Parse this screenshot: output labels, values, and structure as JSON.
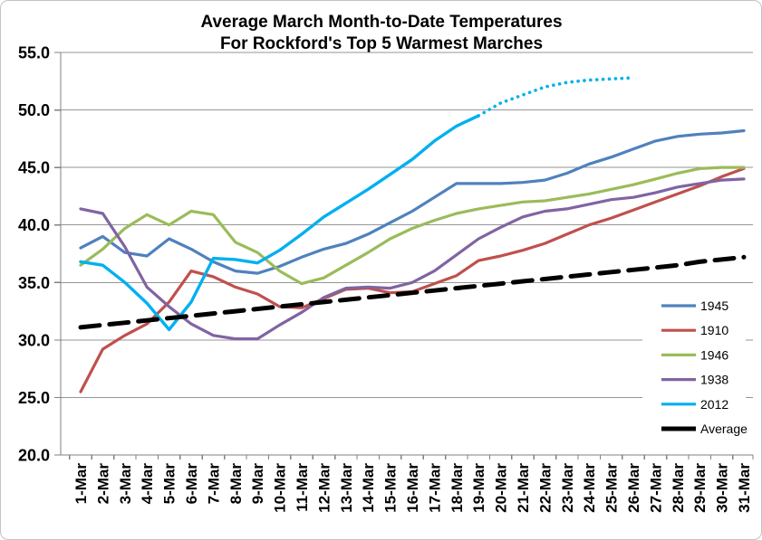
{
  "title": {
    "line1": "Average March Month-to-Date Temperatures",
    "line2": "For Rockford's Top 5 Warmest Marches"
  },
  "colors": {
    "series_1945": "#4F81BD",
    "series_1910": "#C0504D",
    "series_1946": "#9BBB59",
    "series_1938": "#8064A2",
    "series_2012": "#00B0F0",
    "average": "#000000",
    "gridline": "#969696",
    "axis": "#808080"
  },
  "chart_data": {
    "type": "line",
    "title": "Average March Month-to-Date Temperatures For Rockford's Top 5 Warmest Marches",
    "xlabel": "",
    "ylabel": "",
    "ylim": [
      20.0,
      55.0
    ],
    "y_tick_step": 5.0,
    "y_tick_labels": [
      "55.0",
      "50.0",
      "45.0",
      "40.0",
      "35.0",
      "30.0",
      "25.0",
      "20.0"
    ],
    "grid": true,
    "legend_position": "right-inside",
    "categories": [
      "1-Mar",
      "2-Mar",
      "3-Mar",
      "4-Mar",
      "5-Mar",
      "6-Mar",
      "7-Mar",
      "8-Mar",
      "9-Mar",
      "10-Mar",
      "11-Mar",
      "12-Mar",
      "13-Mar",
      "14-Mar",
      "15-Mar",
      "16-Mar",
      "17-Mar",
      "18-Mar",
      "19-Mar",
      "20-Mar",
      "21-Mar",
      "22-Mar",
      "23-Mar",
      "24-Mar",
      "25-Mar",
      "26-Mar",
      "27-Mar",
      "28-Mar",
      "29-Mar",
      "30-Mar",
      "31-Mar"
    ],
    "series": [
      {
        "name": "1945",
        "color": "#4F81BD",
        "width": 3.2,
        "dash": "solid",
        "values": [
          38.0,
          39.0,
          37.6,
          37.3,
          38.8,
          37.9,
          36.8,
          36.0,
          35.8,
          36.4,
          37.2,
          37.9,
          38.4,
          39.2,
          40.2,
          41.2,
          42.4,
          43.6,
          43.6,
          43.6,
          43.7,
          43.9,
          44.5,
          45.3,
          45.9,
          46.6,
          47.3,
          47.7,
          47.9,
          48.0,
          48.2
        ]
      },
      {
        "name": "1910",
        "color": "#C0504D",
        "width": 3.2,
        "dash": "solid",
        "values": [
          25.5,
          29.2,
          30.4,
          31.4,
          33.3,
          36.0,
          35.5,
          34.6,
          34.0,
          32.9,
          32.8,
          33.6,
          34.4,
          34.5,
          34.1,
          34.2,
          34.9,
          35.6,
          36.9,
          37.3,
          37.8,
          38.4,
          39.2,
          40.0,
          40.6,
          41.3,
          42.0,
          42.7,
          43.4,
          44.2,
          44.9
        ]
      },
      {
        "name": "1946",
        "color": "#9BBB59",
        "width": 3.2,
        "dash": "solid",
        "values": [
          36.5,
          37.9,
          39.7,
          40.9,
          40.0,
          41.2,
          40.9,
          38.5,
          37.6,
          36.0,
          34.9,
          35.4,
          36.5,
          37.6,
          38.8,
          39.7,
          40.4,
          41.0,
          41.4,
          41.7,
          42.0,
          42.1,
          42.4,
          42.7,
          43.1,
          43.5,
          44.0,
          44.5,
          44.9,
          45.0,
          45.0
        ]
      },
      {
        "name": "1938",
        "color": "#8064A2",
        "width": 3.2,
        "dash": "solid",
        "values": [
          41.4,
          41.0,
          38.1,
          34.6,
          32.9,
          31.4,
          30.4,
          30.1,
          30.1,
          31.3,
          32.4,
          33.7,
          34.5,
          34.6,
          34.5,
          35.0,
          36.0,
          37.4,
          38.8,
          39.8,
          40.7,
          41.2,
          41.4,
          41.8,
          42.2,
          42.4,
          42.8,
          43.3,
          43.6,
          43.9,
          44.0
        ]
      },
      {
        "name": "2012",
        "color": "#00B0F0",
        "width": 3.4,
        "dash": "solid",
        "dotted_from": 18,
        "values": [
          36.8,
          36.5,
          35.0,
          33.2,
          30.9,
          33.3,
          37.1,
          37.0,
          36.7,
          37.8,
          39.2,
          40.7,
          41.9,
          43.1,
          44.4,
          45.7,
          47.3,
          48.6,
          49.5,
          50.6,
          51.3,
          52.0,
          52.4,
          52.6,
          52.7,
          52.8,
          null,
          null,
          null,
          null,
          null
        ]
      },
      {
        "name": "Average",
        "color": "#000000",
        "width": 5,
        "dash": "long-dash",
        "legend_thick": true,
        "values": [
          31.1,
          31.3,
          31.5,
          31.7,
          31.9,
          32.1,
          32.3,
          32.5,
          32.7,
          32.9,
          33.1,
          33.3,
          33.5,
          33.7,
          33.9,
          34.1,
          34.3,
          34.5,
          34.7,
          34.9,
          35.1,
          35.3,
          35.5,
          35.7,
          35.9,
          36.1,
          36.3,
          36.5,
          36.8,
          37.0,
          37.2
        ]
      }
    ]
  }
}
